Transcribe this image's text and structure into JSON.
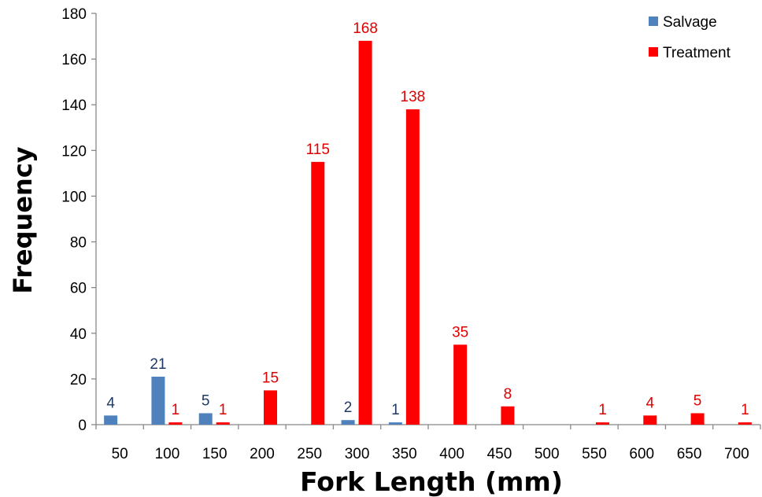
{
  "chart_data": {
    "type": "bar",
    "xlabel": "Fork Length (mm)",
    "ylabel": "Frequency",
    "ylim": [
      0,
      180
    ],
    "yticks": [
      0,
      20,
      40,
      60,
      80,
      100,
      120,
      140,
      160,
      180
    ],
    "categories": [
      "50",
      "100",
      "150",
      "200",
      "250",
      "300",
      "350",
      "400",
      "450",
      "500",
      "550",
      "600",
      "650",
      "700"
    ],
    "series": [
      {
        "name": "Salvage",
        "color": "#4f81bd",
        "label_color": "#1f3864",
        "values": [
          4,
          21,
          5,
          0,
          0,
          2,
          1,
          0,
          0,
          0,
          0,
          0,
          0,
          0
        ],
        "labels": [
          "4",
          "21",
          "5",
          "",
          "",
          "2",
          "1",
          "",
          "",
          "",
          "",
          "",
          "",
          ""
        ]
      },
      {
        "name": "Treatment",
        "color": "#ff0000",
        "label_color": "#e00000",
        "values": [
          0,
          1,
          1,
          15,
          115,
          168,
          138,
          35,
          8,
          0,
          1,
          4,
          5,
          1
        ],
        "labels": [
          "",
          "1",
          "1",
          "15",
          "115",
          "168",
          "138",
          "35",
          "8",
          "",
          "1",
          "4",
          "5",
          "1"
        ]
      }
    ],
    "legend_position": "top-right",
    "grid": false
  }
}
